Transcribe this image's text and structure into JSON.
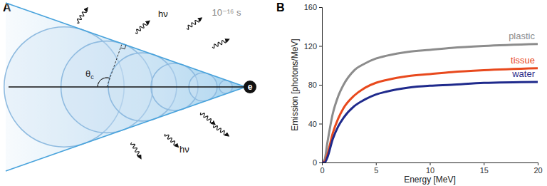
{
  "panel_labels": [
    "A",
    "B"
  ],
  "diagram": {
    "time": "10⁻¹⁶ s",
    "photon_labels": [
      "hν",
      "hν"
    ],
    "angle_label": "θc",
    "particle": "e"
  },
  "chart_data": {
    "type": "line",
    "x_label": "Energy [MeV]",
    "y_label": "Emission [photons/MeV]",
    "x": [
      0,
      0.25,
      0.5,
      1,
      1.5,
      2,
      3,
      4,
      5,
      6,
      8,
      10,
      12,
      15,
      20
    ],
    "series": [
      {
        "name": "plastic",
        "color": "#8c8c8c",
        "values": [
          0,
          3,
          20,
          50,
          68,
          80,
          95,
          102,
          107,
          110,
          114,
          116,
          118,
          120,
          122
        ]
      },
      {
        "name": "tissue",
        "color": "#e8491d",
        "values": [
          0,
          1,
          8,
          30,
          45,
          56,
          69,
          77,
          82,
          85,
          89,
          91,
          93,
          95,
          97
        ]
      },
      {
        "name": "water",
        "color": "#1f2a8c",
        "values": [
          0,
          0,
          5,
          24,
          37,
          46,
          58,
          65,
          70,
          73,
          77,
          79,
          80,
          82,
          83
        ]
      }
    ],
    "xlim": [
      0,
      20
    ],
    "xticks": [
      0,
      5,
      10,
      15,
      20
    ],
    "ylim": [
      0,
      160
    ],
    "yticks": [
      0,
      40,
      80,
      120,
      160
    ],
    "grid": false
  }
}
